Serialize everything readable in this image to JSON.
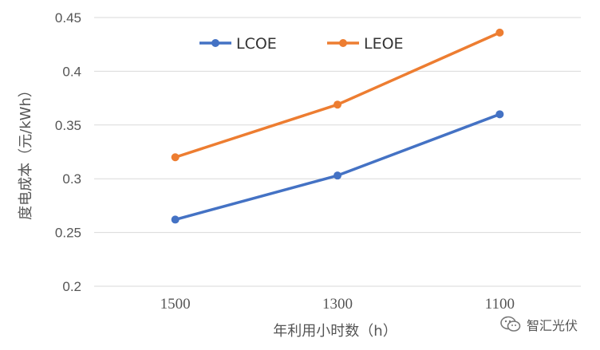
{
  "chart_data": {
    "type": "line",
    "categories": [
      "1500",
      "1300",
      "1100"
    ],
    "series": [
      {
        "name": "LCOE",
        "values": [
          0.262,
          0.303,
          0.36
        ],
        "color": "#4472C4"
      },
      {
        "name": "LEOE",
        "values": [
          0.32,
          0.369,
          0.436
        ],
        "color": "#ED7D31"
      }
    ],
    "yticks": [
      "0.2",
      "0.25",
      "0.3",
      "0.35",
      "0.4",
      "0.45"
    ],
    "ylim": [
      0.2,
      0.45
    ],
    "xlabel": "年利用小时数（h）",
    "ylabel": "度电成本（元/kWh）",
    "grid": true,
    "legend_position": "top"
  },
  "watermark": {
    "text": "智汇光伏",
    "icon": "wechat-icon"
  }
}
